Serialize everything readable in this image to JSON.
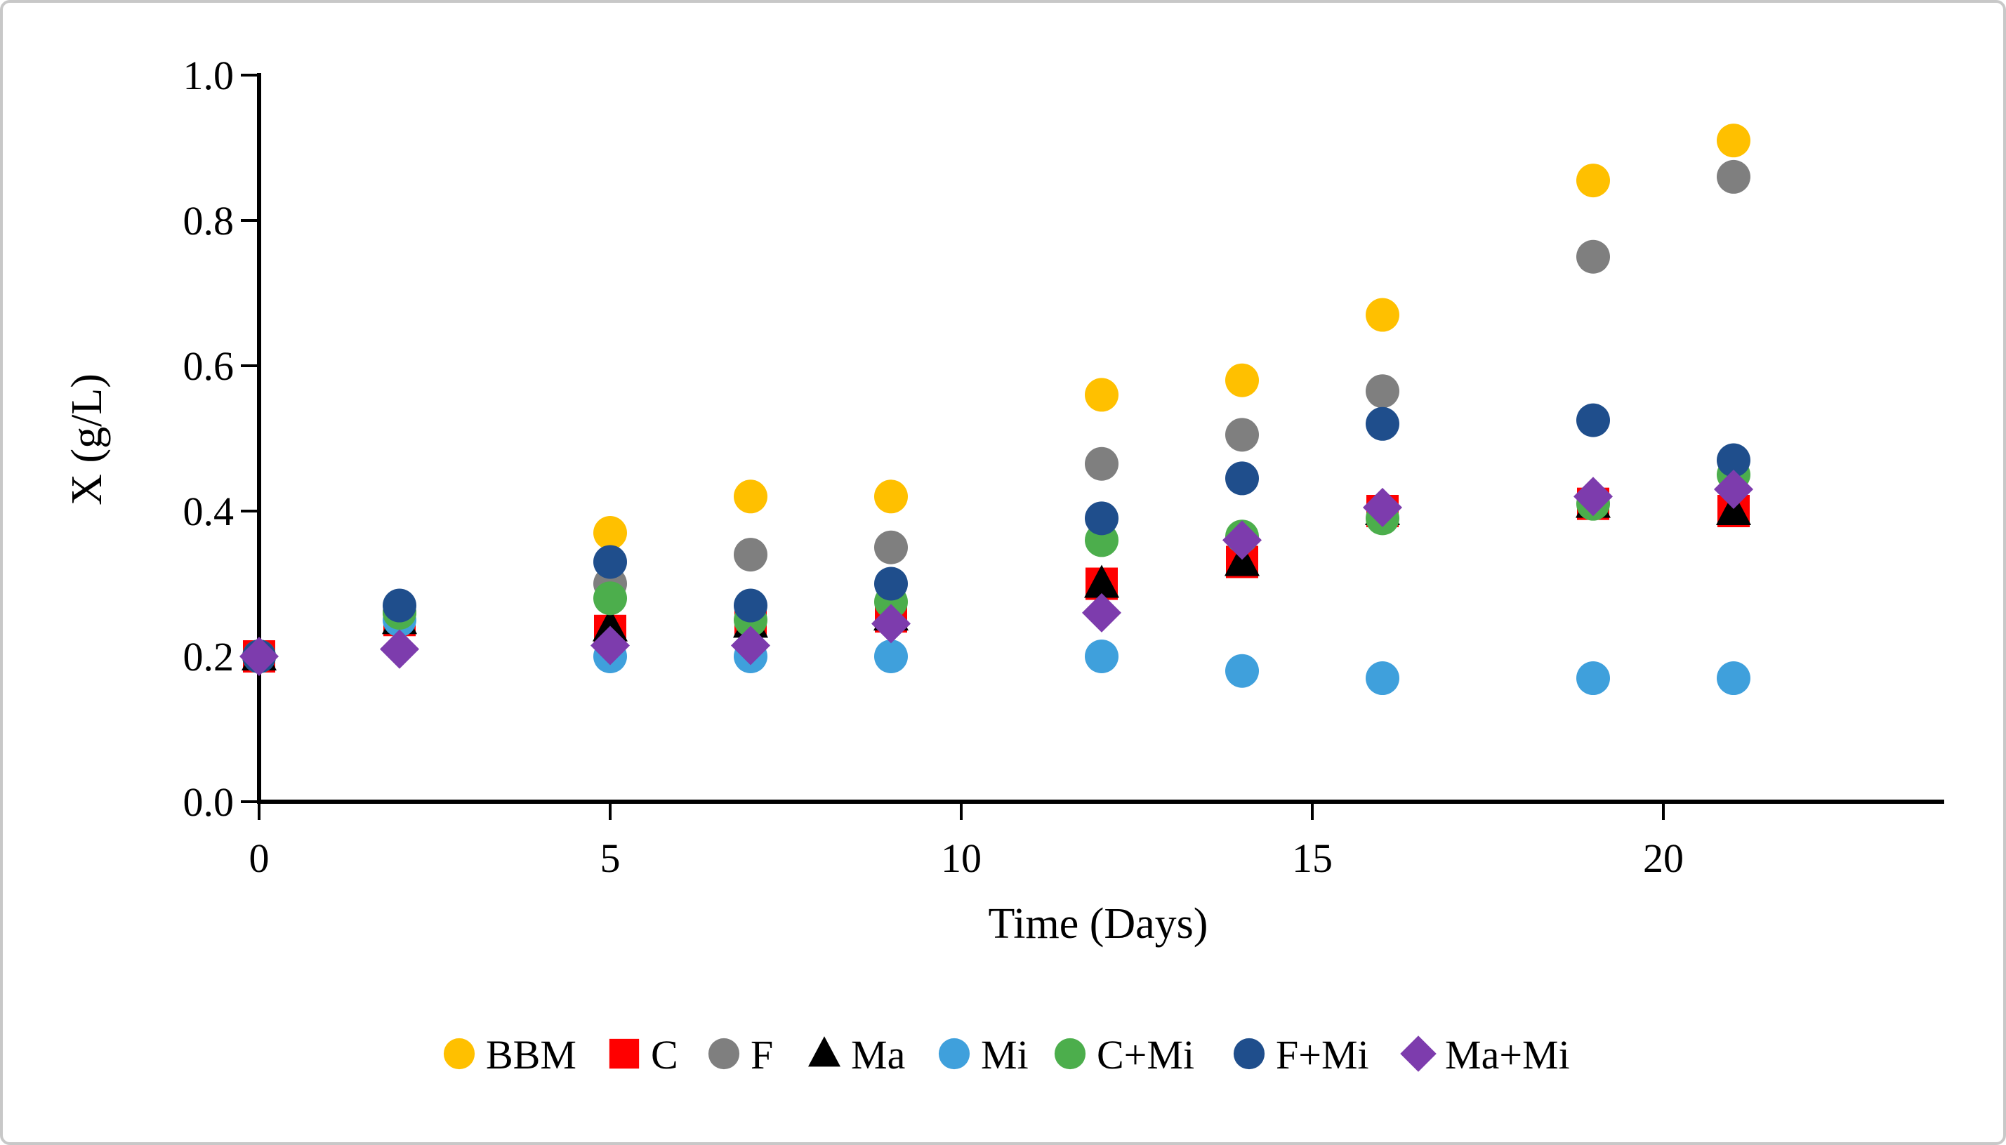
{
  "figure": {
    "background": "#FFFFFF",
    "border_color": "#C8C8C8",
    "axis_color": "#000000"
  },
  "chart_data": {
    "type": "scatter",
    "title": "",
    "xlabel": "Time (Days)",
    "ylabel": "X (g/L)",
    "xlim": [
      0,
      24
    ],
    "ylim": [
      0.0,
      1.0
    ],
    "x_ticks": [
      0,
      5,
      10,
      15,
      20
    ],
    "y_ticks": [
      0.0,
      0.2,
      0.4,
      0.6,
      0.8,
      1.0
    ],
    "grid": false,
    "legend_position": "bottom",
    "x": [
      0,
      2,
      5,
      7,
      9,
      12,
      14,
      16,
      19,
      21
    ],
    "series": [
      {
        "name": "BBM",
        "marker": "circle",
        "color": "#FFC000",
        "values": [
          0.2,
          0.26,
          0.37,
          0.42,
          0.42,
          0.56,
          0.58,
          0.67,
          0.855,
          0.91
        ]
      },
      {
        "name": "C",
        "marker": "square",
        "color": "#FF0000",
        "values": [
          0.2,
          0.25,
          0.235,
          0.25,
          0.255,
          0.3,
          0.33,
          0.4,
          0.41,
          0.4
        ]
      },
      {
        "name": "F",
        "marker": "circle",
        "color": "#7F7F7F",
        "values": [
          0.2,
          0.26,
          0.3,
          0.34,
          0.35,
          0.465,
          0.505,
          0.565,
          0.75,
          0.86
        ]
      },
      {
        "name": "Ma",
        "marker": "triangle",
        "color": "#000000",
        "values": [
          0.2,
          0.25,
          0.24,
          0.245,
          0.255,
          0.3,
          0.33,
          0.4,
          0.41,
          0.4
        ]
      },
      {
        "name": "Mi",
        "marker": "circle",
        "color": "#3FA0DC",
        "values": [
          0.2,
          0.25,
          0.2,
          0.2,
          0.2,
          0.2,
          0.18,
          0.17,
          0.17,
          0.17
        ]
      },
      {
        "name": "C+Mi",
        "marker": "circle",
        "color": "#4CAE4C",
        "values": [
          0.2,
          0.26,
          0.28,
          0.25,
          0.275,
          0.36,
          0.365,
          0.39,
          0.41,
          0.45
        ]
      },
      {
        "name": "F+Mi",
        "marker": "circle",
        "color": "#1F4E8C",
        "values": [
          0.2,
          0.27,
          0.33,
          0.27,
          0.3,
          0.39,
          0.445,
          0.52,
          0.525,
          0.47
        ]
      },
      {
        "name": "Ma+Mi",
        "marker": "diamond",
        "color": "#7D3CAD",
        "values": [
          0.2,
          0.21,
          0.215,
          0.215,
          0.245,
          0.26,
          0.36,
          0.405,
          0.42,
          0.43
        ]
      }
    ]
  }
}
